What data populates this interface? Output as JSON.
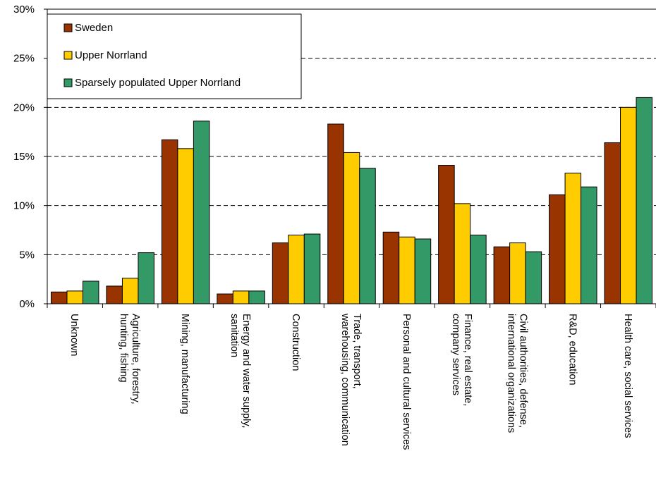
{
  "chart_data": {
    "type": "bar",
    "ylim": [
      0,
      30
    ],
    "y_ticks": [
      "0%",
      "5%",
      "10%",
      "15%",
      "20%",
      "25%",
      "30%"
    ],
    "y_tick_values": [
      0,
      5,
      10,
      15,
      20,
      25,
      30
    ],
    "grid": "horizontal dashed",
    "legend_position": "top-left",
    "categories": [
      [
        "Unknown"
      ],
      [
        "Agriculture, forestry,",
        "hunting, fishing"
      ],
      [
        "Mining, manufacturing"
      ],
      [
        "Energy and water supply,",
        "sanitation"
      ],
      [
        "Construction"
      ],
      [
        "Trade, transport,",
        "warehousing, communication"
      ],
      [
        "Personal and cultural services"
      ],
      [
        "Finance, real estate,",
        "company services"
      ],
      [
        "Civil authorities, defense,",
        "international organizations"
      ],
      [
        "R&D, education"
      ],
      [
        "Health care, social services"
      ]
    ],
    "series": [
      {
        "name": "Sweden",
        "color": "#993300",
        "values": [
          1.2,
          1.8,
          16.7,
          1.0,
          6.2,
          18.3,
          7.3,
          14.1,
          5.8,
          11.1,
          16.4
        ]
      },
      {
        "name": "Upper Norrland",
        "color": "#FFCC00",
        "values": [
          1.3,
          2.6,
          15.8,
          1.3,
          7.0,
          15.4,
          6.8,
          10.2,
          6.2,
          13.3,
          20.0
        ]
      },
      {
        "name": "Sparsely populated Upper Norrland",
        "color": "#339966",
        "values": [
          2.3,
          5.2,
          18.6,
          1.3,
          7.1,
          13.8,
          6.6,
          7.0,
          5.3,
          11.9,
          21.0
        ]
      }
    ]
  }
}
